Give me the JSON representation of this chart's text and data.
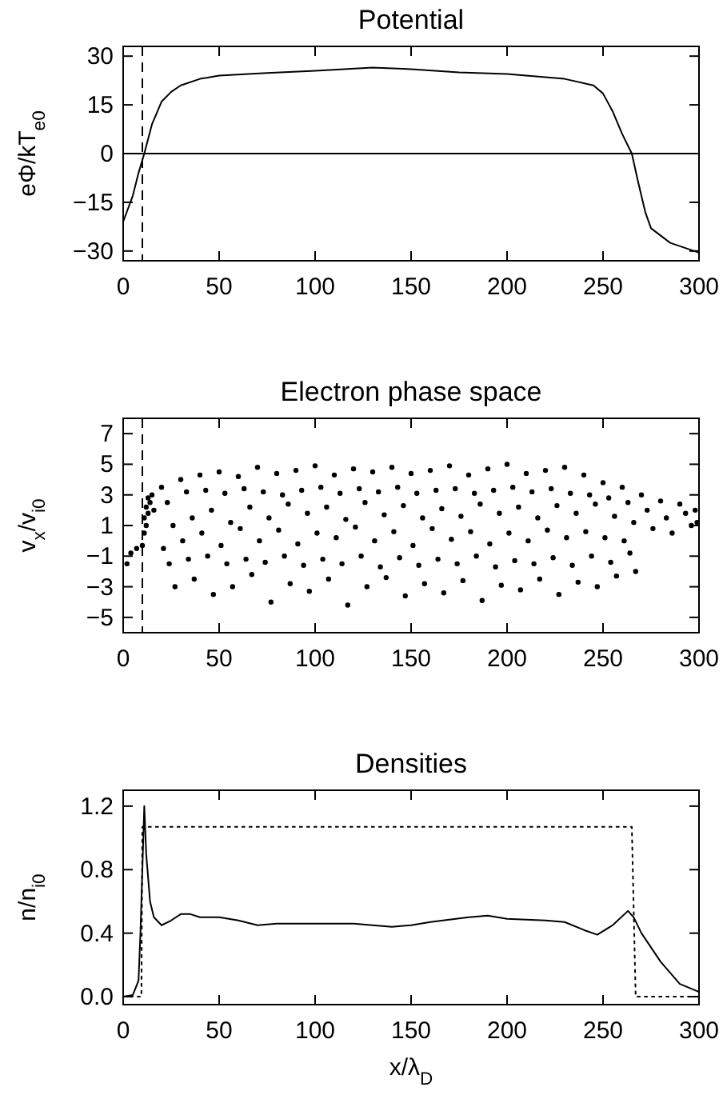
{
  "chart_data": [
    {
      "type": "line",
      "title": "Potential",
      "ylabel": "eΦ/kT$_{e0}$",
      "xlim": [
        0,
        300
      ],
      "xticks": [
        0,
        50,
        100,
        150,
        200,
        250,
        300
      ],
      "ylim": [
        -33,
        33
      ],
      "yticks": [
        -30,
        -15,
        0,
        15,
        30
      ],
      "color": "#000000",
      "line_style": "solid",
      "x": [
        0,
        5,
        8,
        11,
        15,
        20,
        25,
        30,
        40,
        50,
        75,
        100,
        130,
        150,
        175,
        200,
        230,
        245,
        250,
        255,
        260,
        265,
        268,
        272,
        275,
        285,
        300
      ],
      "values": [
        -21,
        -13,
        -6,
        0,
        9,
        16,
        19,
        21,
        23,
        24,
        24.8,
        25.5,
        26.5,
        26,
        25,
        24.5,
        23,
        21,
        18.5,
        13,
        6,
        0,
        -8,
        -18,
        -23,
        -27.5,
        -30.5
      ],
      "ref_lines": [
        {
          "axis": "x",
          "value": 10,
          "line_style": "dashed"
        },
        {
          "axis": "y",
          "value": 0,
          "line_style": "solid"
        }
      ]
    },
    {
      "type": "scatter",
      "title": "Electron phase space",
      "ylabel": "v$_{x}$/v$_{i0}$",
      "xlim": [
        0,
        300
      ],
      "xticks": [
        0,
        50,
        100,
        150,
        200,
        250,
        300
      ],
      "ylim": [
        -6,
        8
      ],
      "yticks": [
        -5,
        -3,
        -1,
        1,
        3,
        5,
        7
      ],
      "color": "#000000",
      "marker": "circle",
      "x": [
        2,
        4,
        7,
        10,
        11,
        11,
        12,
        12,
        13,
        13,
        14,
        15,
        16,
        20,
        23,
        26,
        21,
        24,
        27,
        30,
        33,
        36,
        31,
        34,
        37,
        40,
        43,
        46,
        41,
        44,
        47,
        50,
        53,
        56,
        51,
        54,
        57,
        60,
        63,
        66,
        61,
        64,
        67,
        70,
        73,
        76,
        71,
        74,
        77,
        80,
        83,
        86,
        81,
        84,
        87,
        90,
        93,
        96,
        91,
        94,
        97,
        100,
        103,
        106,
        101,
        104,
        107,
        110,
        113,
        116,
        111,
        114,
        117,
        120,
        123,
        126,
        121,
        124,
        127,
        130,
        133,
        136,
        131,
        134,
        137,
        140,
        143,
        146,
        141,
        144,
        147,
        150,
        153,
        156,
        151,
        154,
        157,
        160,
        163,
        166,
        161,
        164,
        167,
        170,
        173,
        176,
        171,
        174,
        177,
        180,
        183,
        186,
        181,
        184,
        187,
        190,
        193,
        196,
        191,
        194,
        197,
        200,
        203,
        206,
        201,
        204,
        207,
        210,
        213,
        216,
        211,
        214,
        217,
        220,
        223,
        226,
        221,
        224,
        227,
        230,
        233,
        236,
        231,
        234,
        237,
        240,
        243,
        246,
        241,
        244,
        247,
        250,
        253,
        256,
        251,
        254,
        257,
        260,
        263,
        266,
        261,
        264,
        267,
        270,
        273,
        276,
        280,
        283,
        286,
        290,
        293,
        296,
        298,
        299
      ],
      "values": [
        -1.5,
        -0.8,
        -0.5,
        -0.3,
        0.5,
        1.5,
        2.2,
        1,
        2.8,
        1.8,
        2.5,
        3,
        2,
        3.5,
        2.5,
        1,
        -0.5,
        -1.5,
        -3,
        4,
        3.2,
        1.5,
        0,
        -1.2,
        -2.5,
        4.3,
        3.3,
        2,
        0.5,
        -1,
        -3.5,
        4.5,
        3.1,
        1.2,
        -0.3,
        -1.5,
        -3,
        4.2,
        3.4,
        2.2,
        0.8,
        -1.2,
        -2.2,
        4.8,
        3.2,
        1.5,
        0,
        -1.4,
        -4,
        4.4,
        3,
        2.4,
        0.7,
        -1,
        -2.8,
        4.6,
        3.3,
        1.8,
        -0.2,
        -1.6,
        -3.3,
        4.9,
        3.5,
        2.2,
        0.5,
        -1.2,
        -2.5,
        4.3,
        3.1,
        1.4,
        0.2,
        -1.5,
        -4.2,
        4.7,
        3.4,
        2.5,
        0.9,
        -1,
        -3,
        4.5,
        3.2,
        1.7,
        0,
        -1.7,
        -2.4,
        4.8,
        3.5,
        2.3,
        0.6,
        -1.1,
        -3.6,
        4.4,
        3.1,
        1.5,
        -0.3,
        -1.6,
        -2.8,
        4.6,
        3.3,
        2.1,
        0.8,
        -1.2,
        -3.4,
        4.9,
        3.4,
        1.6,
        0.1,
        -1.5,
        -2.6,
        4.3,
        3.1,
        2.4,
        0.6,
        -1,
        -3.9,
        4.7,
        3.3,
        1.8,
        -0.2,
        -1.7,
        -2.9,
        5,
        3.5,
        2.2,
        0.5,
        -1.3,
        -3.2,
        4.4,
        3.2,
        1.5,
        0,
        -1.5,
        -2.5,
        4.6,
        3.4,
        2.3,
        0.7,
        -1.1,
        -3.5,
        4.8,
        3.1,
        1.8,
        0.2,
        -1.6,
        -2.7,
        4.3,
        3,
        2.4,
        0.6,
        -1,
        -3,
        3.8,
        2.8,
        1.6,
        0.2,
        -1.4,
        -2.3,
        3.5,
        2.5,
        1.2,
        0,
        -0.8,
        -2,
        3,
        2,
        0.8,
        2.6,
        1.5,
        0.5,
        2.4,
        1.8,
        1,
        2,
        1.2
      ],
      "ref_lines": [
        {
          "axis": "x",
          "value": 10,
          "line_style": "dashed"
        }
      ]
    },
    {
      "type": "line",
      "title": "Densities",
      "xlabel": "x/λ$_{D}$",
      "ylabel": "n/n$_{i0}$",
      "xlim": [
        0,
        300
      ],
      "xticks": [
        0,
        50,
        100,
        150,
        200,
        250,
        300
      ],
      "ylim": [
        -0.05,
        1.3
      ],
      "yticks": [
        {
          "value": 0,
          "label": "0.0"
        },
        0.4,
        0.8,
        1.2
      ],
      "series": [
        {
          "color": "#000000",
          "line_style": "solid",
          "x": [
            0,
            5,
            8,
            9,
            10,
            11,
            12,
            14,
            16,
            20,
            25,
            30,
            35,
            40,
            50,
            60,
            70,
            80,
            100,
            120,
            140,
            150,
            160,
            180,
            190,
            200,
            220,
            230,
            240,
            247,
            255,
            263,
            266,
            270,
            280,
            290,
            300
          ],
          "values": [
            0,
            0.01,
            0.1,
            0.4,
            0.8,
            1.2,
            0.9,
            0.6,
            0.5,
            0.45,
            0.48,
            0.52,
            0.52,
            0.5,
            0.5,
            0.48,
            0.45,
            0.46,
            0.46,
            0.46,
            0.44,
            0.45,
            0.47,
            0.5,
            0.51,
            0.49,
            0.48,
            0.47,
            0.42,
            0.39,
            0.45,
            0.54,
            0.5,
            0.4,
            0.22,
            0.08,
            0.03
          ]
        },
        {
          "color": "#000000",
          "line_style": "dotted",
          "x": [
            0,
            9.5,
            10,
            265,
            267,
            300
          ],
          "values": [
            0,
            0,
            1.07,
            1.07,
            0,
            0
          ]
        }
      ]
    }
  ]
}
